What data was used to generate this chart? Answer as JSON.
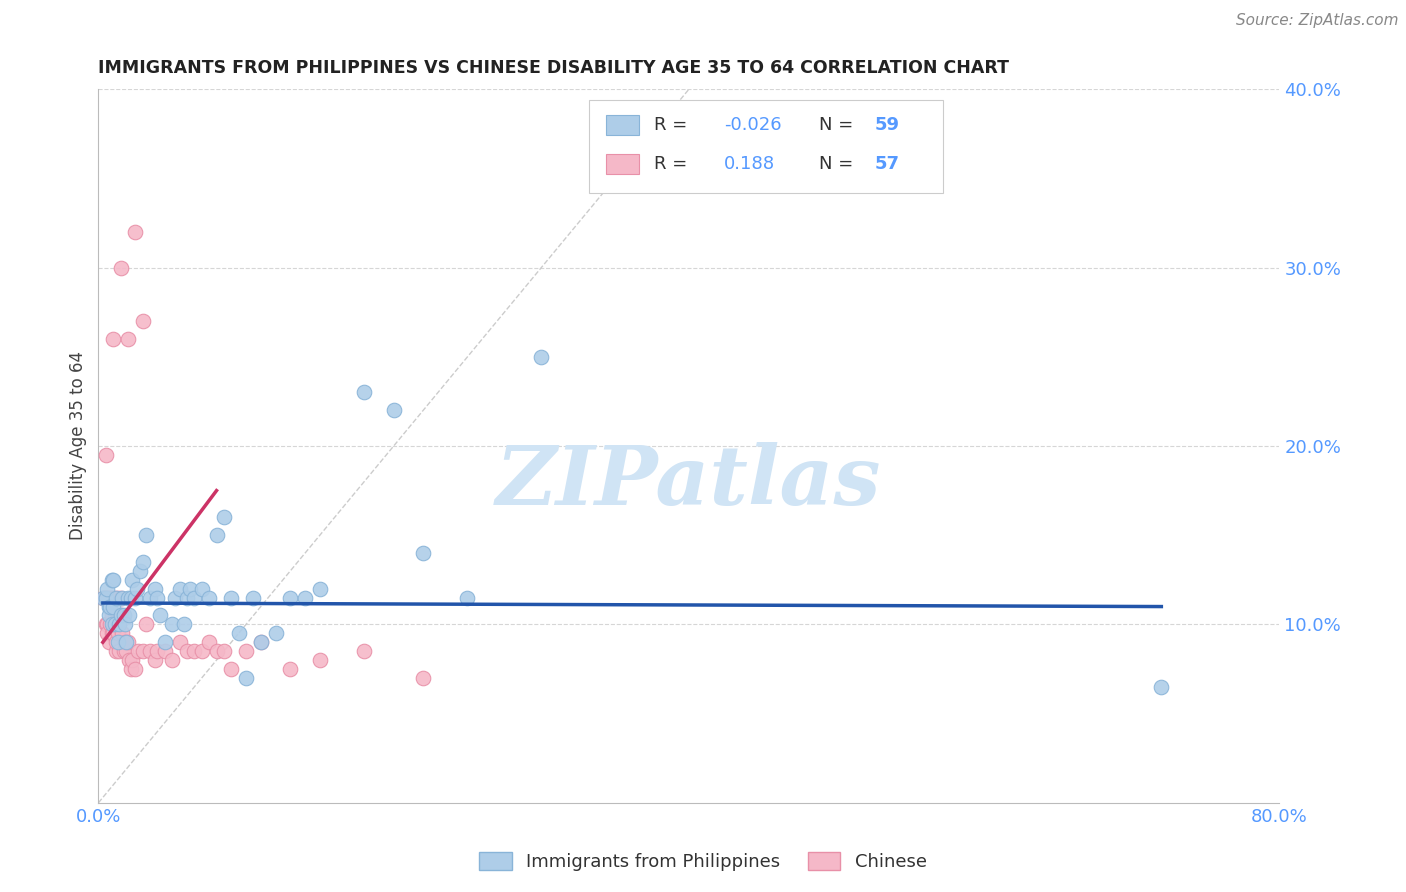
{
  "title": "IMMIGRANTS FROM PHILIPPINES VS CHINESE DISABILITY AGE 35 TO 64 CORRELATION CHART",
  "source": "Source: ZipAtlas.com",
  "ylabel": "Disability Age 35 to 64",
  "xlim": [
    0.0,
    0.8
  ],
  "ylim": [
    0.0,
    0.4
  ],
  "xticks": [
    0.0,
    0.1,
    0.2,
    0.3,
    0.4,
    0.5,
    0.6,
    0.7,
    0.8
  ],
  "xticklabels": [
    "0.0%",
    "",
    "",
    "",
    "",
    "",
    "",
    "",
    "80.0%"
  ],
  "yticks": [
    0.1,
    0.2,
    0.3,
    0.4
  ],
  "yticklabels": [
    "10.0%",
    "20.0%",
    "30.0%",
    "40.0%"
  ],
  "legend_labels": [
    "Immigrants from Philippines",
    "Chinese"
  ],
  "legend_r1": "R = -0.026",
  "legend_r2": "R =  0.188",
  "legend_n1": "N = 59",
  "legend_n2": "N = 57",
  "philippines_color": "#aecde8",
  "chinese_color": "#f5b8c8",
  "philippines_edge": "#89b4d8",
  "chinese_edge": "#e890a8",
  "philippines_line_color": "#2255aa",
  "chinese_line_color": "#cc3366",
  "diag_line_color": "#cccccc",
  "tick_color": "#5599ff",
  "watermark_color": "#d0e4f5",
  "philippines_x": [
    0.003,
    0.005,
    0.006,
    0.007,
    0.007,
    0.008,
    0.009,
    0.009,
    0.01,
    0.01,
    0.011,
    0.012,
    0.013,
    0.014,
    0.015,
    0.016,
    0.017,
    0.018,
    0.019,
    0.02,
    0.021,
    0.022,
    0.023,
    0.025,
    0.026,
    0.028,
    0.03,
    0.032,
    0.035,
    0.038,
    0.04,
    0.042,
    0.045,
    0.05,
    0.052,
    0.055,
    0.058,
    0.06,
    0.062,
    0.065,
    0.07,
    0.075,
    0.08,
    0.085,
    0.09,
    0.095,
    0.1,
    0.105,
    0.11,
    0.12,
    0.13,
    0.14,
    0.15,
    0.18,
    0.2,
    0.22,
    0.25,
    0.3,
    0.72
  ],
  "philippines_y": [
    0.115,
    0.115,
    0.12,
    0.11,
    0.105,
    0.11,
    0.125,
    0.1,
    0.11,
    0.125,
    0.1,
    0.115,
    0.09,
    0.1,
    0.105,
    0.115,
    0.105,
    0.1,
    0.09,
    0.115,
    0.105,
    0.115,
    0.125,
    0.115,
    0.12,
    0.13,
    0.135,
    0.15,
    0.115,
    0.12,
    0.115,
    0.105,
    0.09,
    0.1,
    0.115,
    0.12,
    0.1,
    0.115,
    0.12,
    0.115,
    0.12,
    0.115,
    0.15,
    0.16,
    0.115,
    0.095,
    0.07,
    0.115,
    0.09,
    0.095,
    0.115,
    0.115,
    0.12,
    0.23,
    0.22,
    0.14,
    0.115,
    0.25,
    0.065
  ],
  "chinese_x": [
    0.003,
    0.004,
    0.005,
    0.005,
    0.006,
    0.006,
    0.006,
    0.007,
    0.007,
    0.008,
    0.008,
    0.009,
    0.009,
    0.01,
    0.01,
    0.01,
    0.011,
    0.011,
    0.012,
    0.012,
    0.013,
    0.013,
    0.014,
    0.014,
    0.015,
    0.015,
    0.016,
    0.017,
    0.018,
    0.019,
    0.02,
    0.021,
    0.022,
    0.023,
    0.025,
    0.027,
    0.03,
    0.032,
    0.035,
    0.038,
    0.04,
    0.045,
    0.05,
    0.055,
    0.06,
    0.065,
    0.07,
    0.075,
    0.08,
    0.085,
    0.09,
    0.1,
    0.11,
    0.13,
    0.15,
    0.18,
    0.22
  ],
  "chinese_y": [
    0.115,
    0.115,
    0.1,
    0.115,
    0.1,
    0.115,
    0.095,
    0.09,
    0.115,
    0.1,
    0.115,
    0.105,
    0.095,
    0.1,
    0.115,
    0.095,
    0.105,
    0.115,
    0.085,
    0.09,
    0.115,
    0.095,
    0.1,
    0.085,
    0.105,
    0.115,
    0.095,
    0.085,
    0.09,
    0.085,
    0.09,
    0.08,
    0.075,
    0.08,
    0.075,
    0.085,
    0.085,
    0.1,
    0.085,
    0.08,
    0.085,
    0.085,
    0.08,
    0.09,
    0.085,
    0.085,
    0.085,
    0.09,
    0.085,
    0.085,
    0.075,
    0.085,
    0.09,
    0.075,
    0.08,
    0.085,
    0.07
  ],
  "chinese_outliers_x": [
    0.005,
    0.01,
    0.015,
    0.02,
    0.025,
    0.03
  ],
  "chinese_outliers_y": [
    0.195,
    0.26,
    0.3,
    0.26,
    0.32,
    0.27
  ],
  "phil_line_x": [
    0.003,
    0.72
  ],
  "phil_line_y": [
    0.112,
    0.11
  ],
  "chin_line_x": [
    0.003,
    0.08
  ],
  "chin_line_y": [
    0.09,
    0.175
  ]
}
